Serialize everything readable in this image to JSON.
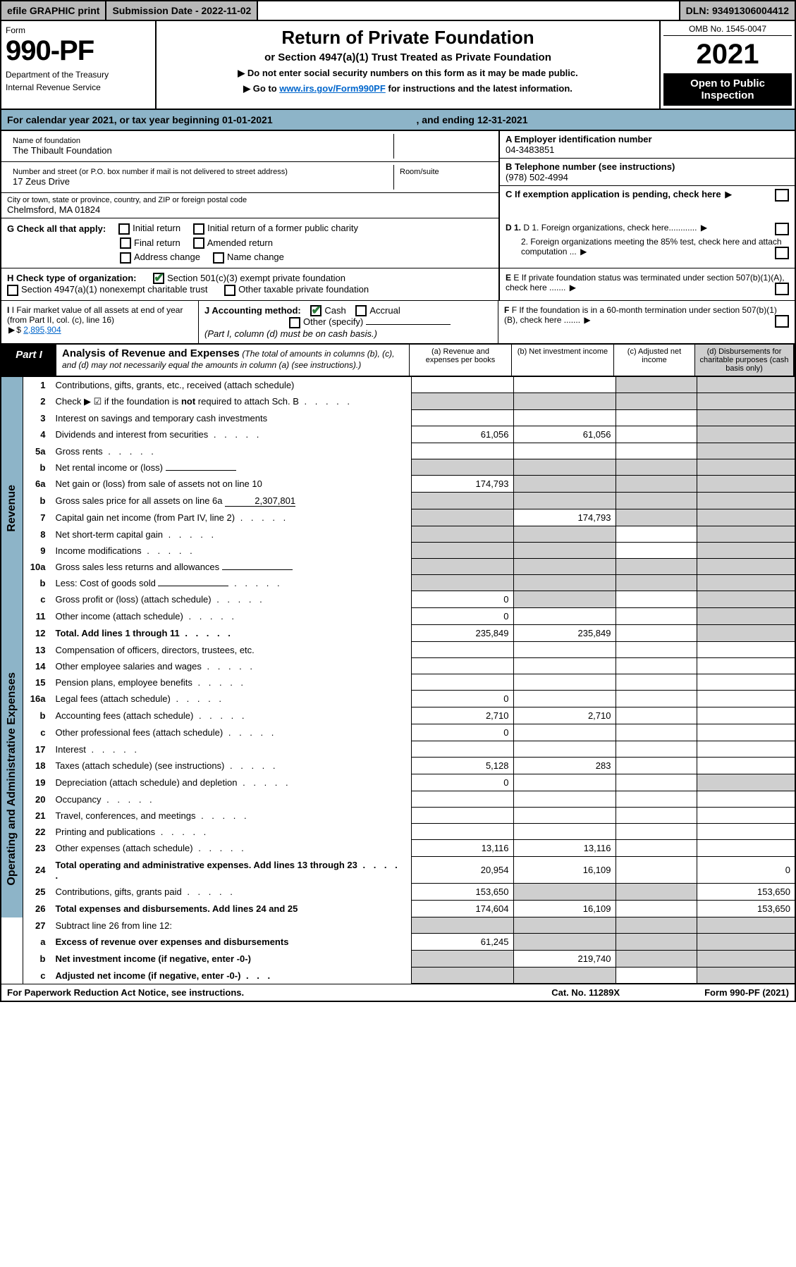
{
  "topbar": {
    "print": "efile GRAPHIC print",
    "sub_label": "Submission Date - 2022-11-02",
    "dln": "DLN: 93491306004412"
  },
  "header": {
    "form_label": "Form",
    "form_no": "990-PF",
    "dept": "Department of the Treasury",
    "irs": "Internal Revenue Service",
    "title": "Return of Private Foundation",
    "subtitle": "or Section 4947(a)(1) Trust Treated as Private Foundation",
    "instr1": "▶ Do not enter social security numbers on this form as it may be made public.",
    "instr2_pre": "▶ Go to ",
    "instr2_link": "www.irs.gov/Form990PF",
    "instr2_post": " for instructions and the latest information.",
    "omb": "OMB No. 1545-0047",
    "year": "2021",
    "open": "Open to Public Inspection"
  },
  "calyear": {
    "pre": "For calendar year 2021, or tax year beginning ",
    "begin": "01-01-2021",
    "mid": ", and ending ",
    "end": "12-31-2021"
  },
  "foundation": {
    "name_label": "Name of foundation",
    "name": "The Thibault Foundation",
    "addr_label": "Number and street (or P.O. box number if mail is not delivered to street address)",
    "addr": "17 Zeus Drive",
    "room_label": "Room/suite",
    "city_label": "City or town, state or province, country, and ZIP or foreign postal code",
    "city": "Chelmsford, MA  01824",
    "a_label": "A Employer identification number",
    "a_val": "04-3483851",
    "b_label": "B Telephone number (see instructions)",
    "b_val": "(978) 502-4994",
    "c_label": "C If exemption application is pending, check here",
    "d1": "D 1. Foreign organizations, check here............",
    "d2": "2. Foreign organizations meeting the 85% test, check here and attach computation ...",
    "e": "E  If private foundation status was terminated under section 507(b)(1)(A), check here .......",
    "f": "F  If the foundation is in a 60-month termination under section 507(b)(1)(B), check here ......."
  },
  "checks": {
    "g_label": "G Check all that apply:",
    "g1": "Initial return",
    "g2": "Initial return of a former public charity",
    "g3": "Final return",
    "g4": "Amended return",
    "g5": "Address change",
    "g6": "Name change",
    "h_label": "H Check type of organization:",
    "h1": "Section 501(c)(3) exempt private foundation",
    "h2": "Section 4947(a)(1) nonexempt charitable trust",
    "h3": "Other taxable private foundation",
    "i_label": "I Fair market value of all assets at end of year (from Part II, col. (c), line 16)",
    "i_val": "2,895,904",
    "j_label": "J Accounting method:",
    "j1": "Cash",
    "j2": "Accrual",
    "j3": "Other (specify)",
    "j_note": "(Part I, column (d) must be on cash basis.)"
  },
  "part1": {
    "label": "Part I",
    "title": "Analysis of Revenue and Expenses",
    "note": "(The total of amounts in columns (b), (c), and (d) may not necessarily equal the amounts in column (a) (see instructions).)",
    "col_a": "(a)  Revenue and expenses per books",
    "col_b": "(b)  Net investment income",
    "col_c": "(c)  Adjusted net income",
    "col_d": "(d)  Disbursements for charitable purposes (cash basis only)"
  },
  "sides": {
    "rev": "Revenue",
    "exp": "Operating and Administrative Expenses"
  },
  "rows": [
    {
      "n": "1",
      "d": "Contributions, gifts, grants, etc., received (attach schedule)",
      "a": "",
      "b": "",
      "c": "",
      "dd": "",
      "grayC": true,
      "grayD": true
    },
    {
      "n": "2",
      "d": "Check ▶ ☑ if the foundation is not required to attach Sch. B",
      "dots": true,
      "a": "",
      "b": "",
      "c": "",
      "dd": "",
      "grayA": true,
      "grayB": true,
      "grayC": true,
      "grayD": true,
      "bold_not": true
    },
    {
      "n": "3",
      "d": "Interest on savings and temporary cash investments",
      "a": "",
      "b": "",
      "c": "",
      "dd": "",
      "grayD": true
    },
    {
      "n": "4",
      "d": "Dividends and interest from securities",
      "dots": true,
      "a": "61,056",
      "b": "61,056",
      "c": "",
      "dd": "",
      "grayD": true
    },
    {
      "n": "5a",
      "d": "Gross rents",
      "dots": true,
      "a": "",
      "b": "",
      "c": "",
      "dd": "",
      "grayD": true
    },
    {
      "n": "b",
      "d": "Net rental income or (loss)",
      "input": "",
      "a": "",
      "b": "",
      "c": "",
      "dd": "",
      "grayA": true,
      "grayB": true,
      "grayC": true,
      "grayD": true
    },
    {
      "n": "6a",
      "d": "Net gain or (loss) from sale of assets not on line 10",
      "a": "174,793",
      "b": "",
      "c": "",
      "dd": "",
      "grayB": true,
      "grayC": true,
      "grayD": true
    },
    {
      "n": "b",
      "d": "Gross sales price for all assets on line 6a",
      "input": "2,307,801",
      "a": "",
      "b": "",
      "c": "",
      "dd": "",
      "grayA": true,
      "grayB": true,
      "grayC": true,
      "grayD": true
    },
    {
      "n": "7",
      "d": "Capital gain net income (from Part IV, line 2)",
      "dots": true,
      "a": "",
      "b": "174,793",
      "c": "",
      "dd": "",
      "grayA": true,
      "grayC": true,
      "grayD": true
    },
    {
      "n": "8",
      "d": "Net short-term capital gain",
      "dots": true,
      "a": "",
      "b": "",
      "c": "",
      "dd": "",
      "grayA": true,
      "grayB": true,
      "grayD": true
    },
    {
      "n": "9",
      "d": "Income modifications",
      "dots": true,
      "a": "",
      "b": "",
      "c": "",
      "dd": "",
      "grayA": true,
      "grayB": true,
      "grayD": true
    },
    {
      "n": "10a",
      "d": "Gross sales less returns and allowances",
      "input": "",
      "a": "",
      "b": "",
      "c": "",
      "dd": "",
      "grayA": true,
      "grayB": true,
      "grayC": true,
      "grayD": true
    },
    {
      "n": "b",
      "d": "Less: Cost of goods sold",
      "dots": true,
      "input": "",
      "a": "",
      "b": "",
      "c": "",
      "dd": "",
      "grayA": true,
      "grayB": true,
      "grayC": true,
      "grayD": true
    },
    {
      "n": "c",
      "d": "Gross profit or (loss) (attach schedule)",
      "dots": true,
      "a": "0",
      "b": "",
      "c": "",
      "dd": "",
      "grayB": true,
      "grayD": true
    },
    {
      "n": "11",
      "d": "Other income (attach schedule)",
      "dots": true,
      "a": "0",
      "b": "",
      "c": "",
      "dd": "",
      "grayD": true
    },
    {
      "n": "12",
      "d": "Total. Add lines 1 through 11",
      "dots": true,
      "bold": true,
      "a": "235,849",
      "b": "235,849",
      "c": "",
      "dd": "",
      "grayD": true
    }
  ],
  "rows_exp": [
    {
      "n": "13",
      "d": "Compensation of officers, directors, trustees, etc.",
      "a": "",
      "b": "",
      "c": "",
      "dd": ""
    },
    {
      "n": "14",
      "d": "Other employee salaries and wages",
      "dots": true,
      "a": "",
      "b": "",
      "c": "",
      "dd": ""
    },
    {
      "n": "15",
      "d": "Pension plans, employee benefits",
      "dots": true,
      "a": "",
      "b": "",
      "c": "",
      "dd": ""
    },
    {
      "n": "16a",
      "d": "Legal fees (attach schedule)",
      "dots": true,
      "a": "0",
      "b": "",
      "c": "",
      "dd": ""
    },
    {
      "n": "b",
      "d": "Accounting fees (attach schedule)",
      "dots": true,
      "a": "2,710",
      "b": "2,710",
      "c": "",
      "dd": ""
    },
    {
      "n": "c",
      "d": "Other professional fees (attach schedule)",
      "dots": true,
      "a": "0",
      "b": "",
      "c": "",
      "dd": ""
    },
    {
      "n": "17",
      "d": "Interest",
      "dots": true,
      "a": "",
      "b": "",
      "c": "",
      "dd": ""
    },
    {
      "n": "18",
      "d": "Taxes (attach schedule) (see instructions)",
      "dots": true,
      "a": "5,128",
      "b": "283",
      "c": "",
      "dd": ""
    },
    {
      "n": "19",
      "d": "Depreciation (attach schedule) and depletion",
      "dots": true,
      "a": "0",
      "b": "",
      "c": "",
      "dd": "",
      "grayD": true
    },
    {
      "n": "20",
      "d": "Occupancy",
      "dots": true,
      "a": "",
      "b": "",
      "c": "",
      "dd": ""
    },
    {
      "n": "21",
      "d": "Travel, conferences, and meetings",
      "dots": true,
      "a": "",
      "b": "",
      "c": "",
      "dd": ""
    },
    {
      "n": "22",
      "d": "Printing and publications",
      "dots": true,
      "a": "",
      "b": "",
      "c": "",
      "dd": ""
    },
    {
      "n": "23",
      "d": "Other expenses (attach schedule)",
      "dots": true,
      "a": "13,116",
      "b": "13,116",
      "c": "",
      "dd": ""
    },
    {
      "n": "24",
      "d": "Total operating and administrative expenses. Add lines 13 through 23",
      "dots": true,
      "bold": true,
      "a": "20,954",
      "b": "16,109",
      "c": "",
      "dd": "0"
    },
    {
      "n": "25",
      "d": "Contributions, gifts, grants paid",
      "dots": true,
      "a": "153,650",
      "b": "",
      "c": "",
      "dd": "153,650",
      "grayB": true,
      "grayC": true
    },
    {
      "n": "26",
      "d": "Total expenses and disbursements. Add lines 24 and 25",
      "bold": true,
      "a": "174,604",
      "b": "16,109",
      "c": "",
      "dd": "153,650"
    },
    {
      "n": "27",
      "d": "Subtract line 26 from line 12:",
      "a": "",
      "b": "",
      "c": "",
      "dd": "",
      "grayA": true,
      "grayB": true,
      "grayC": true,
      "grayD": true,
      "noside": true
    },
    {
      "n": "a",
      "d": "Excess of revenue over expenses and disbursements",
      "bold": true,
      "a": "61,245",
      "b": "",
      "c": "",
      "dd": "",
      "grayB": true,
      "grayC": true,
      "grayD": true,
      "noside": true
    },
    {
      "n": "b",
      "d": "Net investment income (if negative, enter -0-)",
      "bold": true,
      "a": "",
      "b": "219,740",
      "c": "",
      "dd": "",
      "grayA": true,
      "grayC": true,
      "grayD": true,
      "noside": true
    },
    {
      "n": "c",
      "d": "Adjusted net income (if negative, enter -0-)",
      "dots": true,
      "bold": true,
      "a": "",
      "b": "",
      "c": "",
      "dd": "",
      "grayA": true,
      "grayB": true,
      "grayD": true,
      "noside": true
    }
  ],
  "footer": {
    "left": "For Paperwork Reduction Act Notice, see instructions.",
    "mid": "Cat. No. 11289X",
    "right": "Form 990-PF (2021)"
  },
  "colors": {
    "blue_bg": "#8db4c8",
    "gray_bg": "#cfcfcf",
    "topbar_gray": "#b8b8b8",
    "link": "#0066cc",
    "check_green": "#2a7a3a"
  }
}
